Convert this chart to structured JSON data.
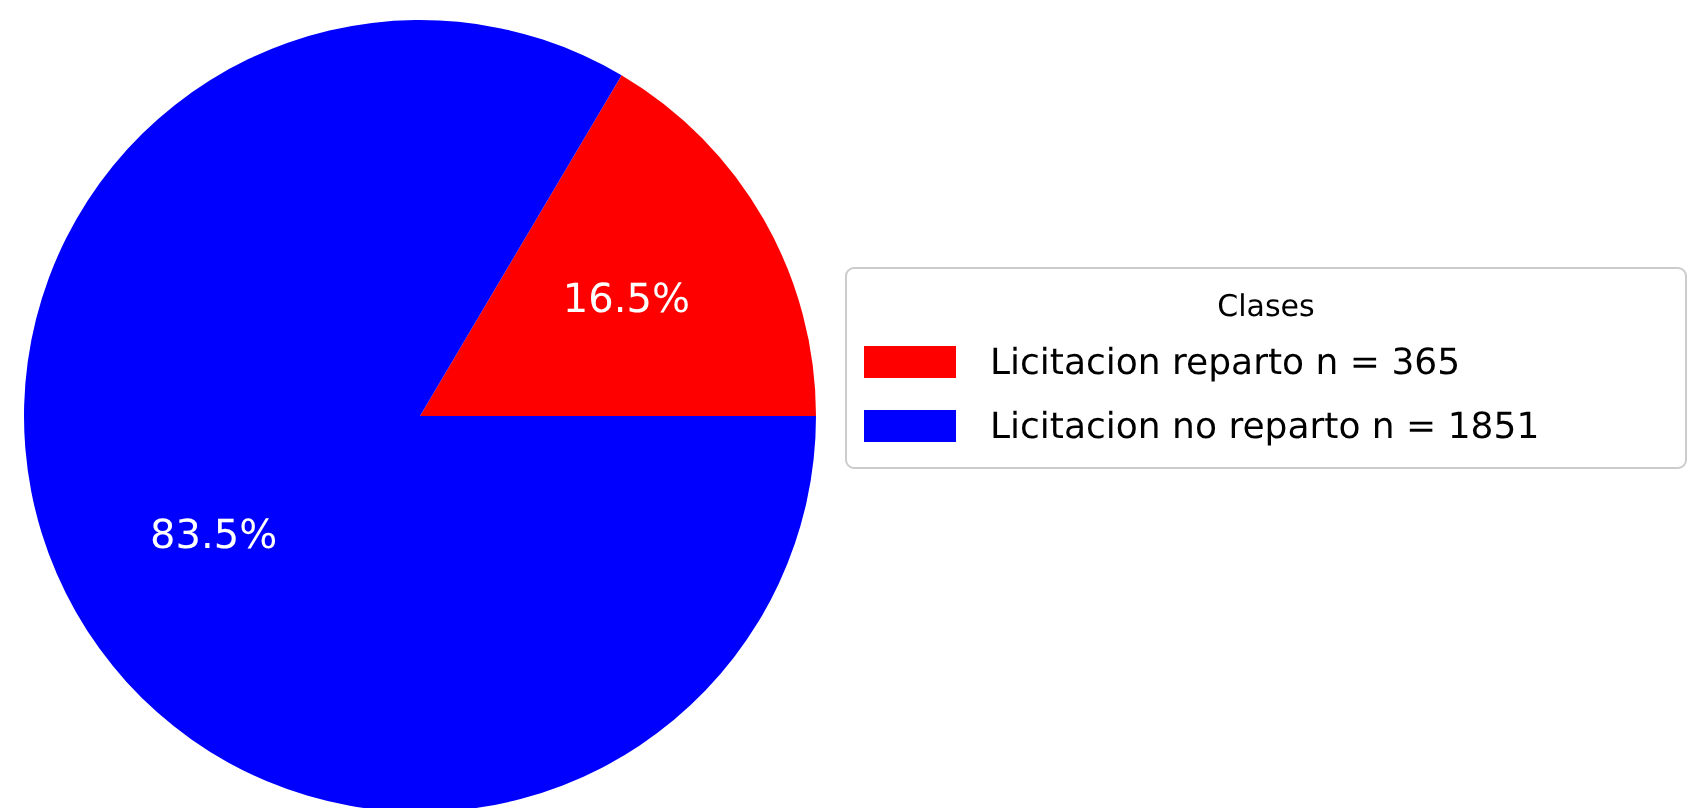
{
  "chart_data": {
    "type": "pie",
    "legend_title": "Clases",
    "legend": "right",
    "categories": [
      "Licitacion reparto n = 365",
      "Licitacion no reparto n = 1851"
    ],
    "values": [
      16.5,
      83.5
    ],
    "colors": [
      "#ff0000",
      "#0000ff"
    ],
    "value_labels": [
      "16.5%",
      "83.5%"
    ]
  }
}
